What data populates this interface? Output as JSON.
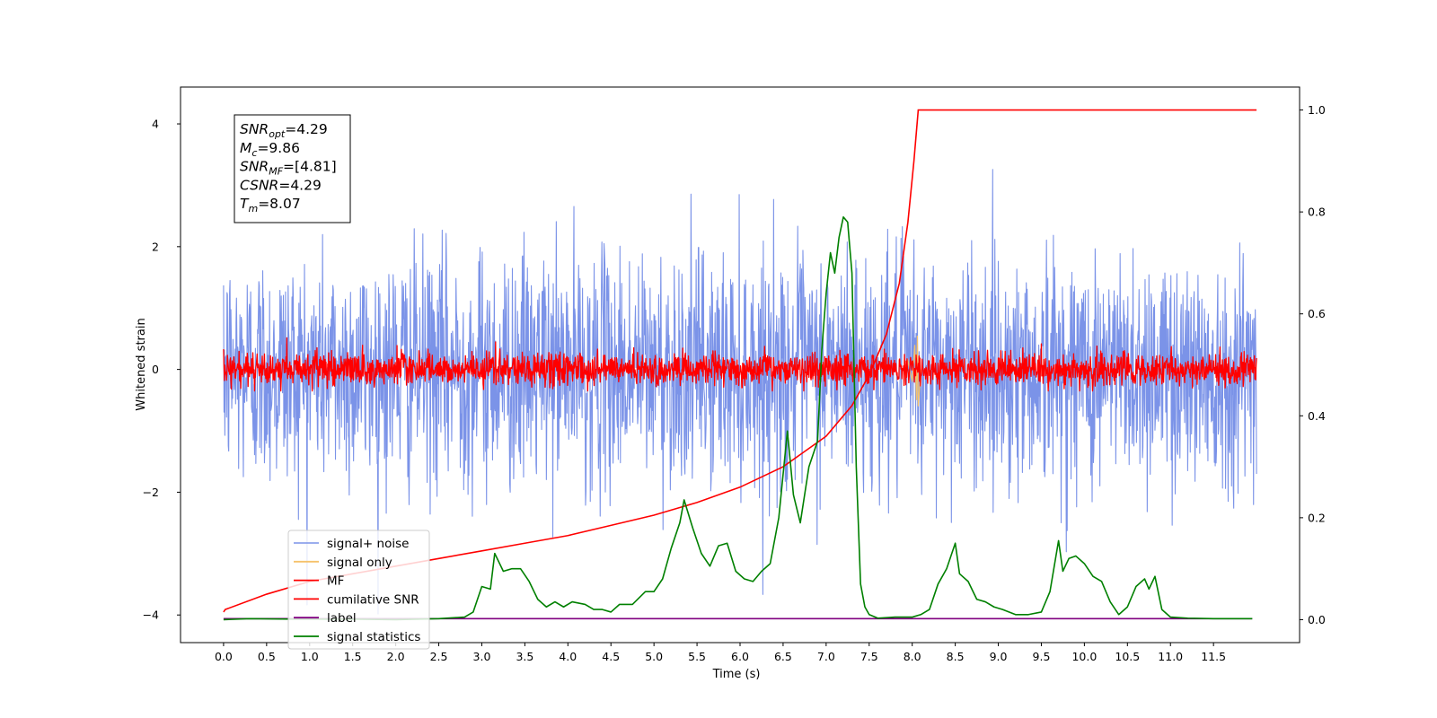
{
  "chart_data": {
    "type": "line",
    "title": "",
    "xlabel": "Time (s)",
    "ylabel": "Whitened strain",
    "xlim": [
      -0.5,
      12.5
    ],
    "ylim": [
      -4.45,
      4.6
    ],
    "y2lim": [
      -0.045,
      1.045
    ],
    "x_ticks": [
      0.0,
      0.5,
      1.0,
      1.5,
      2.0,
      2.5,
      3.0,
      3.5,
      4.0,
      4.5,
      5.0,
      5.5,
      6.0,
      6.5,
      7.0,
      7.5,
      8.0,
      8.5,
      9.0,
      9.5,
      10.0,
      10.5,
      11.0,
      11.5
    ],
    "x_tick_labels": [
      "0.0",
      "0.5",
      "1.0",
      "1.5",
      "2.0",
      "2.5",
      "3.0",
      "3.5",
      "4.0",
      "4.5",
      "5.0",
      "5.5",
      "6.0",
      "6.5",
      "7.0",
      "7.5",
      "8.0",
      "8.5",
      "9.0",
      "9.5",
      "10.0",
      "10.5",
      "11.0",
      "11.5"
    ],
    "y_ticks": [
      -4,
      -2,
      0,
      2,
      4
    ],
    "y_tick_labels": [
      "−4",
      "−2",
      "0",
      "2",
      "4"
    ],
    "y2_ticks": [
      0.0,
      0.2,
      0.4,
      0.6,
      0.8,
      1.0
    ],
    "y2_tick_labels": [
      "0.0",
      "0.2",
      "0.4",
      "0.6",
      "0.8",
      "1.0"
    ],
    "grid": false,
    "legend_position": "lower-left",
    "series": [
      {
        "name": "signal+ noise",
        "axis": "left",
        "color": "#7b93e8",
        "x_range": [
          0.0,
          12.0
        ],
        "amplitude_std": 0.95,
        "y_extent": [
          -4.0,
          4.15
        ],
        "description_values": {
          "approx_mean": 0.0
        }
      },
      {
        "name": "signal only",
        "axis": "left",
        "color": "#f5c26b",
        "x": [
          7.9,
          7.95,
          8.0,
          8.03,
          8.05,
          8.06,
          8.07,
          8.1
        ],
        "y": [
          0.0,
          0.15,
          -0.2,
          0.4,
          -0.5,
          0.55,
          -0.6,
          0.0
        ]
      },
      {
        "name": "MF",
        "axis": "left",
        "color": "#ff0000",
        "x_range": [
          0.0,
          12.0
        ],
        "amplitude_std": 0.13,
        "y_extent": [
          -0.35,
          1.0
        ]
      },
      {
        "name": "cumilative SNR",
        "axis": "right",
        "color": "#ff0000",
        "x": [
          0.0,
          0.02,
          0.5,
          1.0,
          1.5,
          2.0,
          2.5,
          3.0,
          3.5,
          4.0,
          4.5,
          5.0,
          5.5,
          6.0,
          6.5,
          7.0,
          7.3,
          7.5,
          7.7,
          7.85,
          7.95,
          8.02,
          8.07,
          12.0
        ],
        "y": [
          0.015,
          0.02,
          0.05,
          0.075,
          0.09,
          0.105,
          0.12,
          0.135,
          0.15,
          0.165,
          0.185,
          0.205,
          0.23,
          0.26,
          0.3,
          0.36,
          0.42,
          0.48,
          0.56,
          0.66,
          0.78,
          0.9,
          1.0,
          1.0
        ]
      },
      {
        "name": "label",
        "axis": "right",
        "color": "#800080",
        "x": [
          0.0,
          11.95
        ],
        "y": [
          0.002,
          0.002
        ]
      },
      {
        "name": "signal statistics",
        "axis": "right",
        "color": "#008000",
        "x": [
          0.0,
          0.3,
          0.8,
          1.5,
          2.0,
          2.5,
          2.8,
          2.9,
          3.0,
          3.1,
          3.15,
          3.25,
          3.35,
          3.45,
          3.55,
          3.65,
          3.75,
          3.85,
          3.95,
          4.05,
          4.2,
          4.3,
          4.4,
          4.5,
          4.6,
          4.75,
          4.9,
          5.0,
          5.1,
          5.2,
          5.3,
          5.35,
          5.45,
          5.55,
          5.65,
          5.75,
          5.85,
          5.95,
          6.05,
          6.15,
          6.25,
          6.35,
          6.45,
          6.55,
          6.62,
          6.7,
          6.8,
          6.9,
          6.95,
          7.0,
          7.05,
          7.1,
          7.15,
          7.2,
          7.25,
          7.3,
          7.35,
          7.4,
          7.45,
          7.5,
          7.6,
          7.8,
          8.0,
          8.1,
          8.2,
          8.3,
          8.4,
          8.5,
          8.55,
          8.65,
          8.75,
          8.85,
          8.95,
          9.05,
          9.2,
          9.35,
          9.5,
          9.6,
          9.7,
          9.75,
          9.82,
          9.9,
          10.0,
          10.1,
          10.2,
          10.3,
          10.4,
          10.5,
          10.6,
          10.7,
          10.75,
          10.82,
          10.9,
          11.0,
          11.2,
          11.5,
          11.95
        ],
        "y": [
          0.0,
          0.002,
          0.001,
          0.001,
          0.0,
          0.002,
          0.005,
          0.015,
          0.065,
          0.06,
          0.13,
          0.095,
          0.1,
          0.1,
          0.075,
          0.04,
          0.025,
          0.035,
          0.025,
          0.035,
          0.03,
          0.02,
          0.02,
          0.015,
          0.03,
          0.03,
          0.055,
          0.055,
          0.08,
          0.14,
          0.19,
          0.235,
          0.18,
          0.13,
          0.105,
          0.145,
          0.15,
          0.095,
          0.08,
          0.075,
          0.095,
          0.11,
          0.2,
          0.37,
          0.245,
          0.19,
          0.3,
          0.35,
          0.53,
          0.64,
          0.72,
          0.68,
          0.75,
          0.79,
          0.78,
          0.68,
          0.3,
          0.07,
          0.025,
          0.01,
          0.003,
          0.005,
          0.005,
          0.01,
          0.02,
          0.07,
          0.1,
          0.15,
          0.09,
          0.075,
          0.04,
          0.035,
          0.025,
          0.02,
          0.01,
          0.01,
          0.015,
          0.055,
          0.155,
          0.095,
          0.12,
          0.125,
          0.11,
          0.085,
          0.075,
          0.035,
          0.01,
          0.025,
          0.065,
          0.08,
          0.06,
          0.085,
          0.02,
          0.005,
          0.003,
          0.002,
          0.002
        ]
      }
    ],
    "annotation_box": {
      "position": "top-left",
      "lines": [
        {
          "base": "SNR",
          "sub": "opt",
          "value": "=4.29"
        },
        {
          "base": "M",
          "sub": "c",
          "value": "=9.86"
        },
        {
          "base": "SNR",
          "sub": "MF",
          "value": "=[4.81]"
        },
        {
          "base": "CSNR",
          "sub": "",
          "value": "=4.29"
        },
        {
          "base": "T",
          "sub": "m",
          "value": "=8.07"
        }
      ]
    }
  }
}
